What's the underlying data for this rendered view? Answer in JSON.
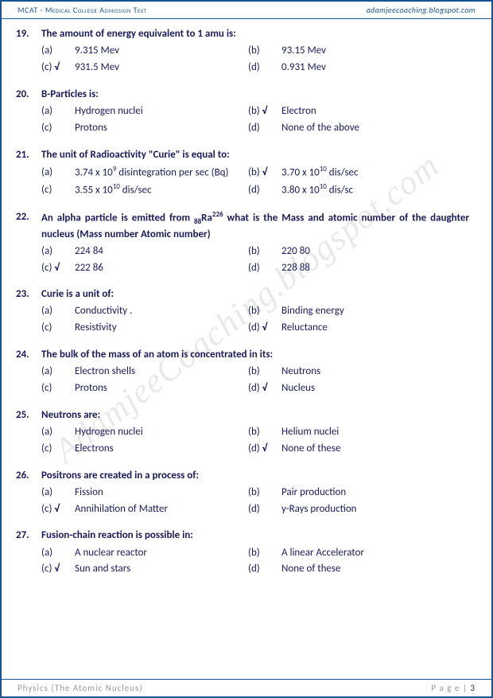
{
  "header": {
    "left": "MCAT  - Medical College Admission Test",
    "right": "adamjeecoaching.blogspot.com"
  },
  "watermark": "AdamjeeCoaching.blogspot.com",
  "footer": {
    "left": "Physics (The Atomic Nucleus)",
    "right_label": "P a g e | ",
    "page_num": "3"
  },
  "questions": [
    {
      "num": "19.",
      "text": "The amount of energy equivalent to 1 amu is:",
      "opts": [
        {
          "l": "(a)",
          "t": "9.315 Mev",
          "c": false
        },
        {
          "l": "(b)",
          "t": "93.15 Mev",
          "c": false
        },
        {
          "l": "(c)",
          "t": "931.5 Mev",
          "c": true
        },
        {
          "l": "(d)",
          "t": "0.931 Mev",
          "c": false
        }
      ]
    },
    {
      "num": "20.",
      "text": "B-Particles is:",
      "opts": [
        {
          "l": "(a)",
          "t": "Hydrogen nuclei",
          "c": false
        },
        {
          "l": "(b)",
          "t": "Electron",
          "c": true
        },
        {
          "l": "(c)",
          "t": "Protons",
          "c": false
        },
        {
          "l": "(d)",
          "t": "None of the above",
          "c": false
        }
      ]
    },
    {
      "num": "21.",
      "text": "The unit of Radioactivity \"Curie\" is equal to:",
      "opts": [
        {
          "l": "(a)",
          "t": "3.74 x 10<sup>9</sup> disintegration per sec (Bq)",
          "c": false
        },
        {
          "l": "(b)",
          "t": "3.70 x 10<sup>10</sup> dis/sec",
          "c": true
        },
        {
          "l": "(c)",
          "t": "3.55 x 10<sup>10</sup> dis/sec",
          "c": false
        },
        {
          "l": "(d)",
          "t": "3.80 x 10<sup>10</sup> dis/sc",
          "c": false
        }
      ]
    },
    {
      "num": "22.",
      "text": "An alpha particle is emitted from <sub>88</sub>Ra<sup>226</sup> what is the Mass and atomic number of the daughter nucleus (Mass number Atomic number)",
      "opts": [
        {
          "l": "(a)",
          "t": "224 84",
          "c": false
        },
        {
          "l": "(b)",
          "t": "220 80",
          "c": false
        },
        {
          "l": "(c)",
          "t": "222 86",
          "c": true
        },
        {
          "l": "(d)",
          "t": "228 88",
          "c": false
        }
      ]
    },
    {
      "num": "23.",
      "text": "Curie is a unit of:",
      "opts": [
        {
          "l": "(a)",
          "t": "Conductivity .",
          "c": false
        },
        {
          "l": "(b)",
          "t": "Binding energy",
          "c": false
        },
        {
          "l": "(c)",
          "t": "Resistivity",
          "c": false
        },
        {
          "l": "(d)",
          "t": "Reluctance",
          "c": true
        }
      ]
    },
    {
      "num": "24.",
      "text": "The bulk of the mass of an atom is concentrated in its:",
      "opts": [
        {
          "l": "(a)",
          "t": "Electron shells",
          "c": false
        },
        {
          "l": "(b)",
          "t": "Neutrons",
          "c": false
        },
        {
          "l": "(c)",
          "t": "Protons",
          "c": false
        },
        {
          "l": "(d)",
          "t": "Nucleus",
          "c": true
        }
      ]
    },
    {
      "num": "25.",
      "text": "Neutrons are:",
      "opts": [
        {
          "l": "(a)",
          "t": "Hydrogen nuclei",
          "c": false
        },
        {
          "l": "(b)",
          "t": "Helium nuclei",
          "c": false
        },
        {
          "l": "(c)",
          "t": "Electrons",
          "c": false
        },
        {
          "l": "(d)",
          "t": "None of these",
          "c": true
        }
      ]
    },
    {
      "num": "26.",
      "text": "Positrons are created in a process of:",
      "opts": [
        {
          "l": "(a)",
          "t": "Fission",
          "c": false
        },
        {
          "l": "(b)",
          "t": "Pair production",
          "c": false
        },
        {
          "l": "(c)",
          "t": "Annihilation of Matter",
          "c": true
        },
        {
          "l": "(d)",
          "t": "y-Rays production",
          "c": false
        }
      ]
    },
    {
      "num": "27.",
      "text": "Fusion-chain reaction is possible in:",
      "opts": [
        {
          "l": "(a)",
          "t": "A nuclear reactor",
          "c": false
        },
        {
          "l": "(b)",
          "t": "A linear Accelerator",
          "c": false
        },
        {
          "l": "(c)",
          "t": "Sun and stars",
          "c": true
        },
        {
          "l": "(d)",
          "t": "None of these",
          "c": false
        }
      ]
    }
  ],
  "colors": {
    "border": "#1a5490",
    "text": "#1a1a5c",
    "footer": "#999999"
  }
}
